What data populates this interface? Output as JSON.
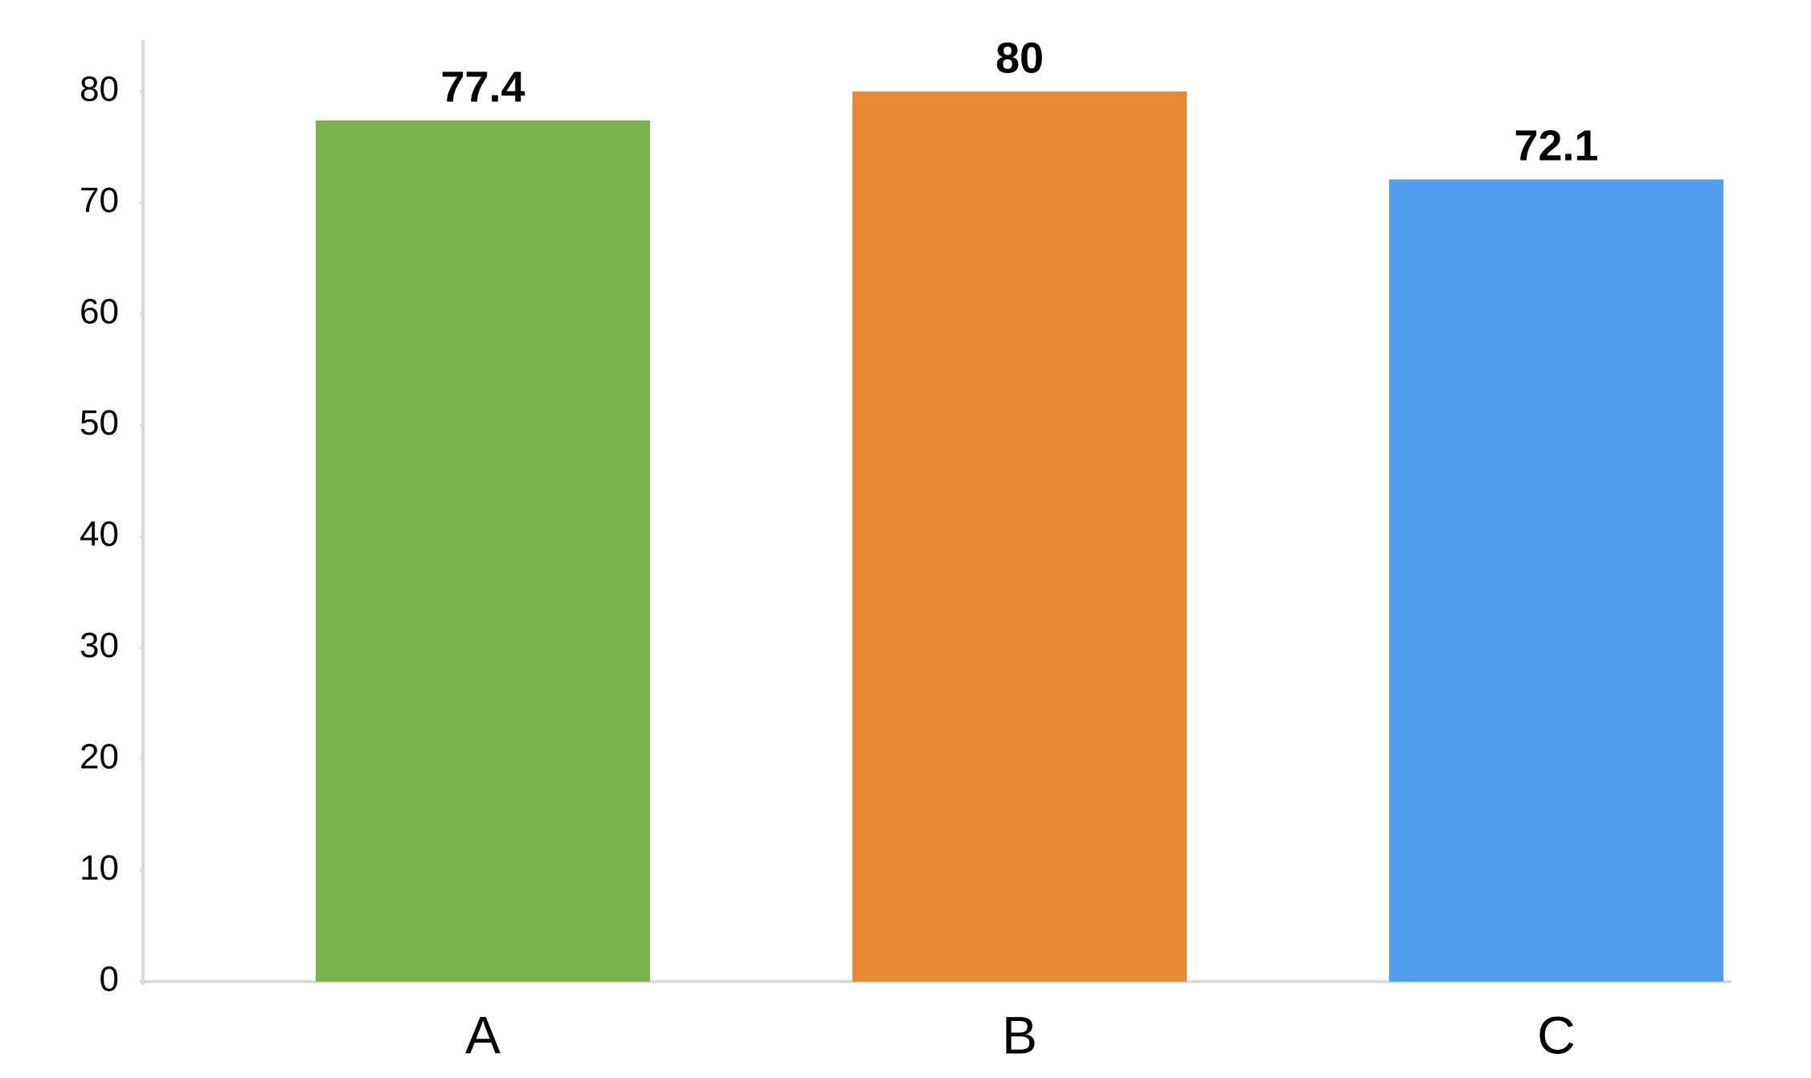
{
  "chart_data": {
    "type": "bar",
    "categories": [
      "A",
      "B",
      "C"
    ],
    "values": [
      77.4,
      80,
      72.1
    ],
    "colors": [
      "#78b24b",
      "#e88832",
      "#519ef0"
    ],
    "ylim": [
      0,
      84
    ],
    "yticks": [
      0,
      10,
      20,
      30,
      40,
      50,
      60,
      70,
      80
    ],
    "grid": false
  }
}
